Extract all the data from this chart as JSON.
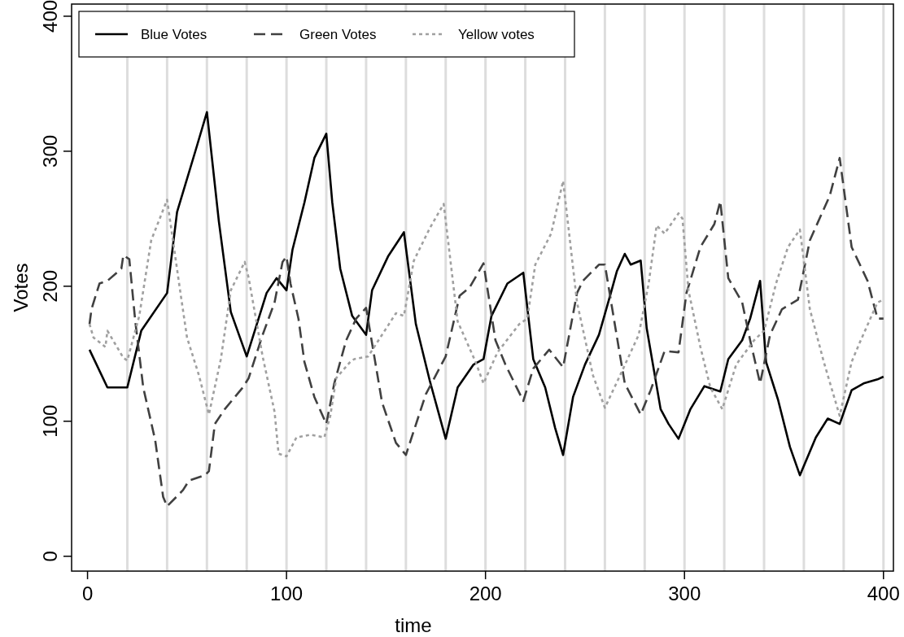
{
  "chart_data": {
    "type": "line",
    "xlabel": "time",
    "ylabel": "Votes",
    "xlim": [
      -8,
      405
    ],
    "ylim": [
      -11,
      409
    ],
    "xticks": [
      0,
      100,
      200,
      300,
      400
    ],
    "yticks": [
      0,
      100,
      200,
      300,
      400
    ],
    "grid": false,
    "legend": "top left",
    "ref_lines": [
      {
        "axis": "x",
        "value": 20,
        "color": "#dddddd"
      },
      {
        "axis": "x",
        "value": 40,
        "color": "#dddddd"
      },
      {
        "axis": "x",
        "value": 60,
        "color": "#dddddd"
      },
      {
        "axis": "x",
        "value": 80,
        "color": "#dddddd"
      },
      {
        "axis": "x",
        "value": 100,
        "color": "#dddddd"
      },
      {
        "axis": "x",
        "value": 120,
        "color": "#dddddd"
      },
      {
        "axis": "x",
        "value": 140,
        "color": "#dddddd"
      },
      {
        "axis": "x",
        "value": 160,
        "color": "#dddddd"
      },
      {
        "axis": "x",
        "value": 180,
        "color": "#dddddd"
      },
      {
        "axis": "x",
        "value": 200,
        "color": "#dddddd"
      },
      {
        "axis": "x",
        "value": 220,
        "color": "#dddddd"
      },
      {
        "axis": "x",
        "value": 240,
        "color": "#dddddd"
      },
      {
        "axis": "x",
        "value": 260,
        "color": "#dddddd"
      },
      {
        "axis": "x",
        "value": 280,
        "color": "#dddddd"
      },
      {
        "axis": "x",
        "value": 300,
        "color": "#dddddd"
      },
      {
        "axis": "x",
        "value": 320,
        "color": "#dddddd"
      },
      {
        "axis": "x",
        "value": 340,
        "color": "#dddddd"
      },
      {
        "axis": "x",
        "value": 360,
        "color": "#dddddd"
      },
      {
        "axis": "x",
        "value": 380,
        "color": "#dddddd"
      },
      {
        "axis": "x",
        "value": 400,
        "color": "#dddddd"
      }
    ],
    "series": [
      {
        "name": "Blue Votes",
        "color": "#000000",
        "line_style": "solid",
        "x": [
          1,
          10,
          20,
          27,
          40,
          45,
          55,
          60,
          66,
          72,
          80,
          90,
          95,
          100,
          103,
          109,
          114,
          120,
          123,
          127,
          133,
          140,
          143,
          151,
          159,
          165,
          172,
          180,
          186,
          194,
          199,
          203,
          211,
          219,
          224,
          230,
          235,
          239,
          244,
          250,
          257,
          263,
          266,
          270,
          273,
          278,
          281,
          288,
          292,
          297,
          303,
          310,
          318,
          322,
          329,
          333,
          338,
          341,
          347,
          353,
          358,
          366,
          372,
          378,
          384,
          390,
          397,
          400
        ],
        "values": [
          153,
          125,
          125,
          167,
          195,
          255,
          304,
          329,
          248,
          181,
          148,
          195,
          206,
          197,
          227,
          262,
          295,
          313,
          262,
          213,
          178,
          164,
          197,
          222,
          240,
          172,
          130,
          87,
          125,
          142,
          146,
          178,
          202,
          210,
          146,
          125,
          95,
          75,
          118,
          142,
          164,
          195,
          211,
          224,
          216,
          219,
          169,
          109,
          98,
          87,
          109,
          126,
          122,
          146,
          160,
          176,
          204,
          144,
          116,
          81,
          60,
          88,
          102,
          98,
          123,
          128,
          131,
          133
        ]
      },
      {
        "name": "Green Votes",
        "color": "#404040",
        "line_style": "dashed",
        "x": [
          1,
          2,
          6,
          10,
          17,
          18,
          21,
          24,
          28,
          34,
          38,
          40,
          48,
          51,
          59,
          61,
          64,
          69,
          78,
          81,
          88,
          94,
          98,
          100,
          102,
          106,
          109,
          114,
          120,
          124,
          130,
          135,
          140,
          148,
          155,
          160,
          170,
          180,
          187,
          192,
          199,
          205,
          210,
          219,
          224,
          232,
          239,
          246,
          249,
          257,
          260,
          267,
          270,
          278,
          283,
          290,
          297,
          301,
          308,
          315,
          318,
          322,
          329,
          333,
          338,
          343,
          349,
          357,
          363,
          373,
          378,
          384,
          392,
          397,
          400
        ],
        "values": [
          172,
          183,
          202,
          204,
          213,
          223,
          220,
          174,
          125,
          86,
          44,
          37,
          49,
          56,
          60,
          63,
          98,
          109,
          125,
          132,
          164,
          188,
          218,
          222,
          202,
          176,
          144,
          118,
          98,
          128,
          160,
          176,
          184,
          114,
          84,
          75,
          120,
          148,
          193,
          199,
          217,
          160,
          142,
          115,
          139,
          153,
          140,
          195,
          204,
          216,
          216,
          154,
          128,
          105,
          123,
          152,
          151,
          195,
          229,
          246,
          263,
          206,
          188,
          160,
          128,
          164,
          183,
          190,
          234,
          267,
          295,
          229,
          204,
          176,
          176
        ]
      },
      {
        "name": "Yellow votes",
        "color": "#a0a0a0",
        "line_style": "dotted",
        "x": [
          1,
          3,
          9,
          10,
          18,
          20,
          26,
          32,
          40,
          47,
          50,
          56,
          61,
          67,
          72,
          79,
          81,
          88,
          94,
          96,
          100,
          105,
          112,
          119,
          122,
          125,
          132,
          134,
          141,
          155,
          159,
          164,
          172,
          179,
          186,
          195,
          199,
          206,
          217,
          221,
          225,
          233,
          239,
          246,
          254,
          260,
          267,
          277,
          282,
          286,
          290,
          297,
          299,
          302,
          308,
          313,
          319,
          326,
          335,
          340,
          346,
          352,
          358,
          363,
          370,
          378,
          384,
          388,
          397,
          400
        ],
        "values": [
          172,
          162,
          155,
          167,
          147,
          145,
          178,
          234,
          264,
          192,
          162,
          134,
          105,
          146,
          197,
          218,
          206,
          148,
          107,
          76,
          74,
          88,
          90,
          88,
          104,
          132,
          144,
          146,
          148,
          180,
          178,
          219,
          243,
          261,
          174,
          144,
          128,
          151,
          172,
          176,
          216,
          239,
          278,
          188,
          134,
          110,
          132,
          164,
          202,
          245,
          239,
          254,
          250,
          197,
          155,
          125,
          109,
          142,
          160,
          167,
          202,
          229,
          242,
          183,
          144,
          104,
          144,
          158,
          188,
          190
        ]
      }
    ]
  }
}
